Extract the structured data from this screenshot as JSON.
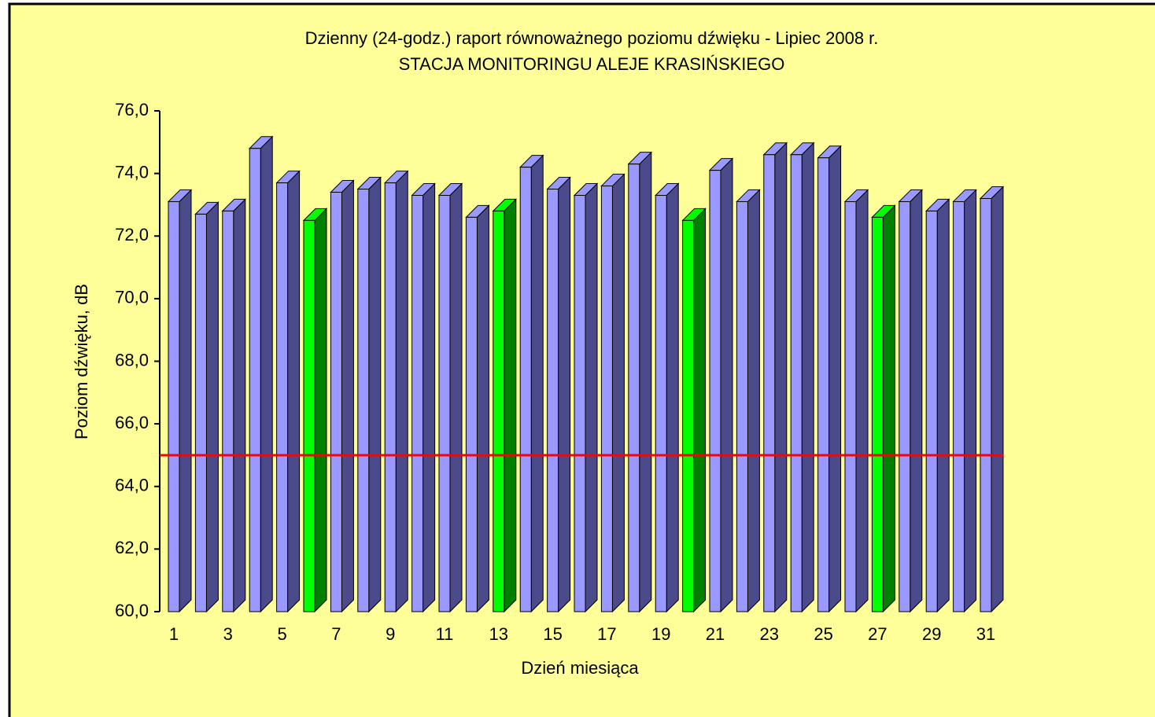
{
  "chart_data": {
    "type": "bar3d",
    "title": "Dzienny (24-godz.) raport równoważnego poziomu dźwięku - Lipiec 2008 r.",
    "subtitle": "STACJA MONITORINGU ALEJE KRASIŃSKIEGO",
    "x_label": "Dzień miesiąca",
    "y_label": "Poziom dźwięku, dB",
    "categories": [
      "1",
      null,
      "3",
      null,
      "5",
      null,
      "7",
      null,
      "9",
      null,
      "11",
      null,
      "13",
      null,
      "15",
      null,
      "17",
      null,
      "19",
      null,
      "21",
      null,
      "23",
      null,
      "25",
      null,
      "27",
      null,
      "29",
      null,
      "31"
    ],
    "values": [
      73.1,
      72.7,
      72.8,
      74.8,
      73.7,
      72.5,
      73.4,
      73.5,
      73.7,
      73.3,
      73.3,
      72.6,
      72.8,
      74.2,
      73.5,
      73.3,
      73.6,
      74.3,
      73.3,
      72.5,
      74.1,
      73.1,
      74.6,
      74.6,
      74.5,
      73.1,
      72.6,
      73.1,
      72.8,
      73.1,
      73.2
    ],
    "colors": [
      "#9999ff",
      "#9999ff",
      "#9999ff",
      "#9999ff",
      "#9999ff",
      "#00ff00",
      "#9999ff",
      "#9999ff",
      "#9999ff",
      "#9999ff",
      "#9999ff",
      "#9999ff",
      "#00ff00",
      "#9999ff",
      "#9999ff",
      "#9999ff",
      "#9999ff",
      "#9999ff",
      "#9999ff",
      "#00ff00",
      "#9999ff",
      "#9999ff",
      "#9999ff",
      "#9999ff",
      "#9999ff",
      "#9999ff",
      "#00ff00",
      "#9999ff",
      "#9999ff",
      "#9999ff",
      "#9999ff"
    ],
    "side_colors": {
      "#9999ff": "#4b4b8c",
      "#00ff00": "#008000"
    },
    "reference_line": {
      "value": 65,
      "color": "#ff0000"
    },
    "ylim": [
      60,
      76
    ],
    "yticks": [
      {
        "value": 60,
        "label": "60,0"
      },
      {
        "value": 62,
        "label": "62,0"
      },
      {
        "value": 64,
        "label": "64,0"
      },
      {
        "value": 66,
        "label": "66,0"
      },
      {
        "value": 68,
        "label": "68,0"
      },
      {
        "value": 70,
        "label": "70,0"
      },
      {
        "value": 72,
        "label": "72,0"
      },
      {
        "value": 74,
        "label": "74,0"
      },
      {
        "value": 76,
        "label": "76,0"
      }
    ],
    "background": "#ffff99"
  }
}
